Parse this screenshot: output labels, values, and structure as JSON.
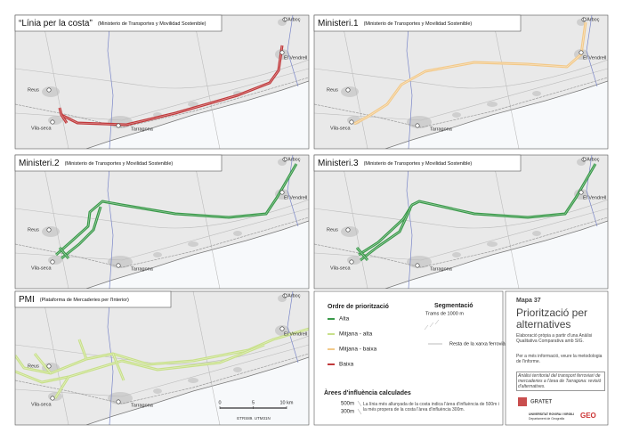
{
  "maps": [
    {
      "title": "“Línia per la costa”",
      "subtitle": "(Ministerio de Transportes y Movilidad Sostenible)",
      "route_color": "#c0393b"
    },
    {
      "title": "Ministeri.1",
      "subtitle": "(Ministerio de Transportes y Movilidad Sostenible)",
      "route_color": "#f2c98a"
    },
    {
      "title": "Ministeri.2",
      "subtitle": "(Ministerio de Transportes y Movilidad Sostenible)",
      "route_color": "#3a9a4a"
    },
    {
      "title": "Ministeri.3",
      "subtitle": "(Ministerio de Transportes y Movilidad Sostenible)",
      "route_color": "#3a9a4a"
    },
    {
      "title": "PMI",
      "subtitle": "(Plataforma de Mercaderies per l'Interior)",
      "route_color": "#c8e08a"
    }
  ],
  "places": {
    "arboc": "L'Arboç",
    "vendrell": "El Vendrell",
    "reus": "Reus",
    "vilaseca": "Vila-seca",
    "tarragona": "Tarragona"
  },
  "legend": {
    "priority_title": "Ordre de priorització",
    "priorities": [
      {
        "label": "Alta",
        "color": "#3a9a4a"
      },
      {
        "label": "Mitjana - alta",
        "color": "#c8e08a"
      },
      {
        "label": "Mitjana - baixa",
        "color": "#f2c98a"
      },
      {
        "label": "Baixa",
        "color": "#c0393b"
      }
    ],
    "segmentation_title": "Segmentació",
    "segment_label": "Trams de 1000 m",
    "rail_label": "Resta de la xarxa ferroviària",
    "influence_title": "Àrees d'influència calculades",
    "influence_labels": [
      "500m",
      "300m"
    ],
    "influence_text": "La línia més allunyada de la costa indica l'àrea d'influència de 500m i la més propera de la costa l'àrea d'influència 300m."
  },
  "scale": {
    "ticks": [
      0,
      5,
      {
        "value": 10,
        "label": "10 km"
      }
    ],
    "projection": "ETRS89. UTM31N"
  },
  "info": {
    "map_number": "Mapa 37",
    "title": "Priorització per alternatives",
    "source": "Elaboració pròpia a partir d'una Anàlisi Qualitativa Comparativa amb SIG.",
    "more": "Per a més informació, veure la metodologia de l'informe.",
    "study": "Anàlisi territorial del transport ferroviari de mercaderies a l'àrea de Tarragona: revisió d'alternatives.",
    "logo_gratet": "GRATET",
    "university": "UNIVERSITAT ROVIRA I VIRGILI",
    "department": "Departament de Geografia",
    "logo_geo": "GEO"
  }
}
